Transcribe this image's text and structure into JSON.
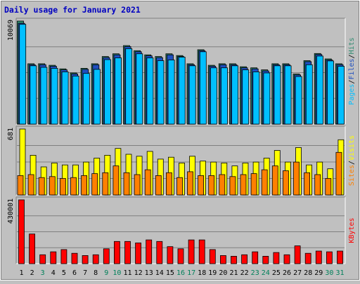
{
  "chart_data": [
    {
      "type": "bar",
      "title": "Daily usage for January 2021",
      "categories": [
        "1",
        "2",
        "3",
        "4",
        "5",
        "6",
        "7",
        "8",
        "9",
        "10",
        "11",
        "12",
        "13",
        "14",
        "15",
        "16",
        "17",
        "18",
        "19",
        "20",
        "21",
        "22",
        "23",
        "24",
        "25",
        "26",
        "27",
        "28",
        "29",
        "30",
        "31"
      ],
      "weekend_days": [
        "3",
        "9",
        "10",
        "16",
        "17",
        "23",
        "24",
        "30",
        "31"
      ],
      "ymax_label": "10069",
      "ylim": [
        0,
        10069
      ],
      "series": [
        {
          "name": "Hits",
          "color": "#2e8b70",
          "values": [
            10069,
            5900,
            5900,
            5750,
            5400,
            5000,
            5450,
            5900,
            6600,
            6870,
            7670,
            7170,
            6770,
            6600,
            6870,
            6700,
            5900,
            7270,
            5750,
            5900,
            5900,
            5600,
            5500,
            5300,
            5900,
            5900,
            4900,
            6200,
            6900,
            6370,
            5900
          ]
        },
        {
          "name": "Files",
          "color": "#1f4fbf",
          "values": [
            9850,
            5800,
            5800,
            5650,
            5300,
            4900,
            5350,
            5800,
            6500,
            6770,
            7570,
            7070,
            6670,
            6500,
            6770,
            6600,
            5800,
            7170,
            5650,
            5800,
            5800,
            5500,
            5400,
            5200,
            5800,
            5800,
            4800,
            6100,
            6800,
            6270,
            5800
          ]
        },
        {
          "name": "Pages",
          "color": "#00bfff",
          "values": [
            9750,
            5700,
            5550,
            5450,
            5100,
            4700,
            4950,
            5350,
            6300,
            6470,
            7370,
            6870,
            6470,
            6200,
            6270,
            6550,
            5700,
            7070,
            5500,
            5500,
            5700,
            5300,
            5100,
            5000,
            5700,
            5700,
            4650,
            5800,
            6650,
            6170,
            5650
          ]
        }
      ],
      "legend": [
        "Pages",
        "/",
        "Files",
        "/",
        "Hits"
      ]
    },
    {
      "type": "bar",
      "ymax_label": "681",
      "ylim": [
        0,
        681
      ],
      "series": [
        {
          "name": "Visits",
          "color": "#ffff00",
          "values": [
            681,
            410,
            290,
            330,
            310,
            310,
            340,
            380,
            410,
            480,
            420,
            400,
            450,
            370,
            390,
            330,
            400,
            350,
            340,
            330,
            300,
            330,
            340,
            380,
            460,
            340,
            490,
            310,
            340,
            270,
            570
          ]
        },
        {
          "name": "Sites",
          "color": "#ff8000",
          "values": [
            200,
            210,
            180,
            190,
            170,
            180,
            200,
            220,
            230,
            300,
            230,
            210,
            260,
            200,
            230,
            180,
            240,
            200,
            200,
            210,
            190,
            210,
            220,
            260,
            300,
            250,
            340,
            230,
            210,
            170,
            440
          ]
        }
      ],
      "legend": [
        "Sites",
        "/",
        "Visits"
      ]
    },
    {
      "type": "bar",
      "ymax_label": "430001",
      "ylim": [
        0,
        430001
      ],
      "series": [
        {
          "name": "KBytes",
          "color": "#ff0000",
          "values": [
            430001,
            200000,
            60000,
            80000,
            95000,
            70000,
            55000,
            60000,
            100000,
            150000,
            150000,
            140000,
            160000,
            150000,
            115000,
            100000,
            160000,
            160000,
            95000,
            55000,
            50000,
            60000,
            80000,
            50000,
            75000,
            60000,
            120000,
            70000,
            85000,
            80000,
            85000
          ]
        }
      ],
      "legend": [
        "KBytes"
      ]
    }
  ],
  "colors": {
    "frame_bg": "#c0c0c0",
    "plot_bg": "#c0c0c0",
    "title": "#0000c0",
    "axis_text": "#000000",
    "weekend_text": "#00805a",
    "slash": "#000000"
  }
}
